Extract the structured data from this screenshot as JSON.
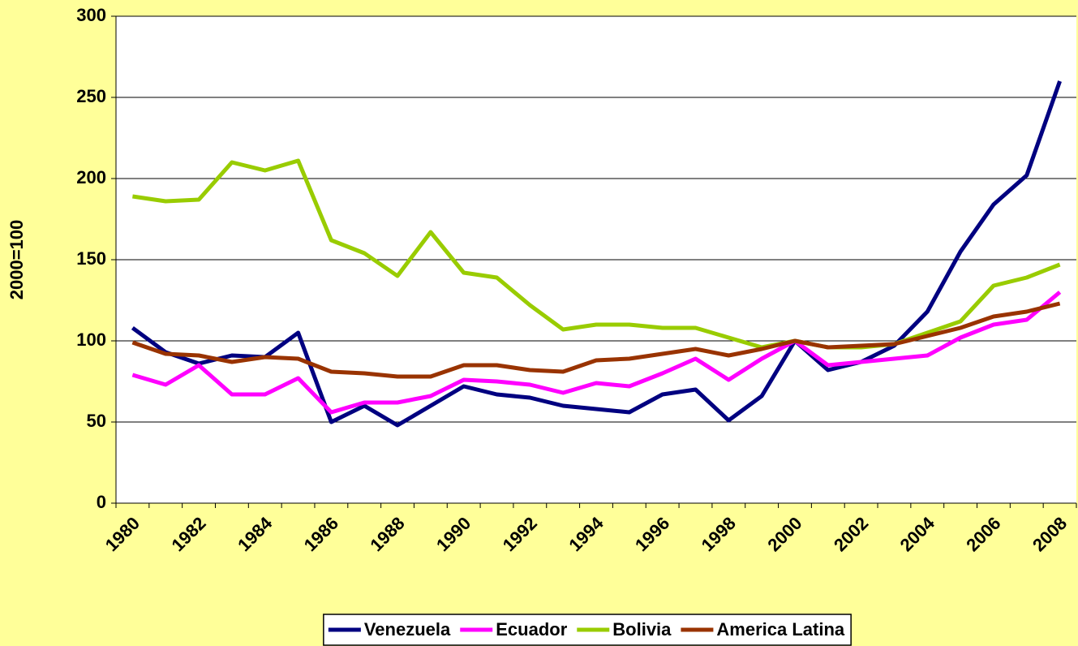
{
  "chart_data": {
    "type": "line",
    "y_label": "2000=100",
    "categories": [
      "1980",
      null,
      "1982",
      null,
      "1984",
      null,
      "1986",
      null,
      "1988",
      null,
      "1990",
      null,
      "1992",
      null,
      "1994",
      null,
      "1996",
      null,
      "1998",
      null,
      "2000",
      null,
      "2002",
      null,
      "2004",
      null,
      "2006",
      null,
      "2008"
    ],
    "series": [
      {
        "name": "Venezuela",
        "color": "#000080",
        "values": [
          108,
          93,
          86,
          91,
          90,
          105,
          50,
          60,
          48,
          60,
          72,
          67,
          65,
          60,
          58,
          56,
          67,
          70,
          51,
          66,
          100,
          82,
          87,
          97,
          118,
          155,
          184,
          202,
          260
        ]
      },
      {
        "name": "Ecuador",
        "color": "#ff00ff",
        "values": [
          79,
          73,
          85,
          67,
          67,
          77,
          56,
          62,
          62,
          66,
          76,
          75,
          73,
          68,
          74,
          72,
          80,
          89,
          76,
          89,
          100,
          85,
          87,
          89,
          91,
          102,
          110,
          113,
          130
        ]
      },
      {
        "name": "Bolivia",
        "color": "#99cc00",
        "values": [
          189,
          186,
          187,
          210,
          205,
          211,
          162,
          154,
          140,
          167,
          142,
          139,
          122,
          107,
          110,
          110,
          108,
          108,
          102,
          96,
          100,
          96,
          96,
          98,
          105,
          112,
          134,
          139,
          147
        ]
      },
      {
        "name": "America Latina",
        "color": "#993300",
        "values": [
          99,
          92,
          91,
          87,
          90,
          89,
          81,
          80,
          78,
          78,
          85,
          85,
          82,
          81,
          88,
          89,
          92,
          95,
          91,
          95,
          100,
          96,
          97,
          98,
          103,
          108,
          115,
          118,
          123
        ]
      }
    ],
    "ylim": [
      0,
      300
    ],
    "yticks": [
      0,
      50,
      100,
      150,
      200,
      250,
      300
    ],
    "grid": true,
    "legend": "bottom"
  }
}
